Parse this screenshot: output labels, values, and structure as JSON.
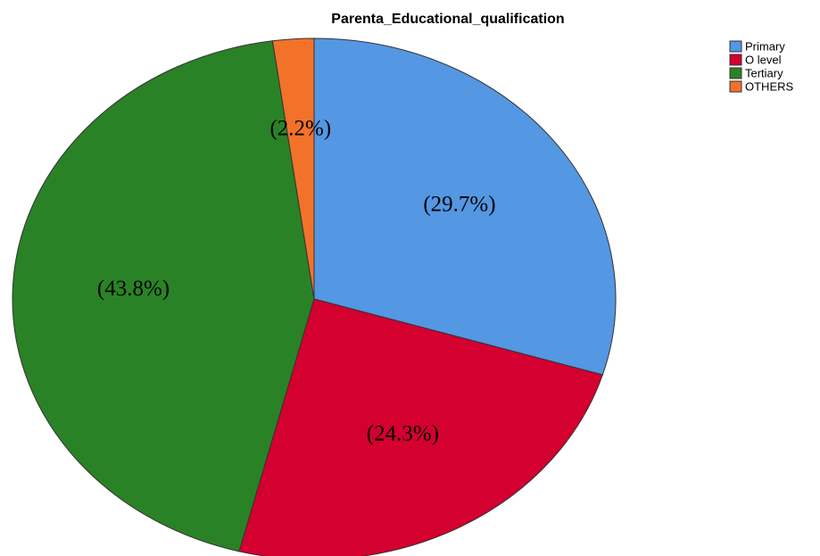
{
  "chart_data": {
    "type": "pie",
    "title": "Parenta_Educational_qualification",
    "categories": [
      "Primary",
      "O level",
      "Tertiary",
      "OTHERS"
    ],
    "values": [
      29.7,
      24.3,
      43.8,
      2.2
    ],
    "value_labels": [
      "(29.7%)",
      "(24.3%)",
      "(43.8%)",
      "(2.2%)"
    ],
    "colors": [
      "#5497e3",
      "#d4002f",
      "#2a8227",
      "#f2722a"
    ],
    "legend": "top-right"
  }
}
